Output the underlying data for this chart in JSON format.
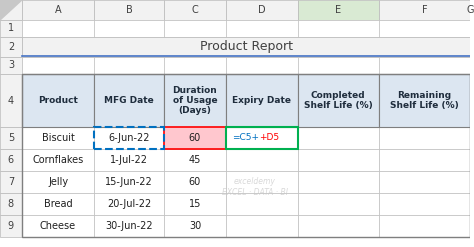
{
  "title": "Product Report",
  "col_headers": [
    "Product",
    "MFG Date",
    "Duration\nof Usage\n(Days)",
    "Expiry Date",
    "Completed\nShelf Life (%)",
    "Remaining\nShelf Life (%)"
  ],
  "col_letters": [
    "A",
    "B",
    "C",
    "D",
    "E",
    "F",
    "G"
  ],
  "row_numbers": [
    "1",
    "2",
    "3",
    "4",
    "5",
    "6",
    "7",
    "8",
    "9"
  ],
  "rows": [
    [
      "Biscuit",
      "6-Jun-22",
      "60",
      "=C5+D5",
      "",
      ""
    ],
    [
      "Cornflakes",
      "1-Jul-22",
      "45",
      "",
      "",
      ""
    ],
    [
      "Jelly",
      "15-Jun-22",
      "60",
      "",
      "",
      ""
    ],
    [
      "Bread",
      "20-Jul-22",
      "15",
      "",
      "",
      ""
    ],
    [
      "Cheese",
      "30-Jun-22",
      "30",
      "",
      "",
      ""
    ]
  ],
  "header_bg": "#dce6f1",
  "cell_bg": "#ffffff",
  "title_bg": "#f2f2f2",
  "grid_color": "#a6a6a6",
  "row_header_bg": "#f2f2f2",
  "col_header_bg": "#f2f2f2",
  "highlight_D5_bg": "#ffc7ce",
  "highlight_D5_border": "#ff0000",
  "highlight_C5_border": "#0070c0",
  "highlight_E5_border": "#00b050",
  "formula_blue": "#0070c0",
  "formula_red": "#ff0000",
  "watermark_color": "#c0c0c0",
  "selected_col_bg": "#e2efda",
  "selected_col_header_bg": "#c6efce"
}
